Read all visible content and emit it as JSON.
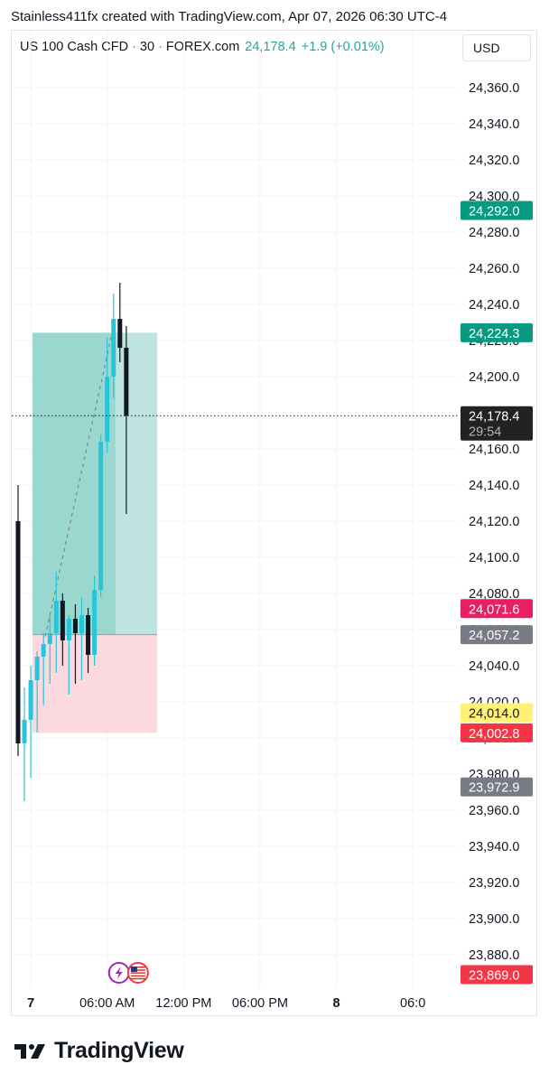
{
  "header": {
    "text": "Stainless411fx created with TradingView.com, Apr 07, 2026 06:30 UTC-4"
  },
  "legend": {
    "symbol": "US 100 Cash CFD",
    "interval": "30",
    "source": "FOREX.com",
    "price": "24,178.4",
    "change": "+1.9 (+0.01%)"
  },
  "currency_button": {
    "label": "USD"
  },
  "footer": {
    "brand": "TradingView"
  },
  "colors": {
    "up": "#26c6da",
    "down": "#131722",
    "target_zone": "#b2dfdb",
    "stop_zone": "#fbd5da",
    "profit_tag": "#089981",
    "loss_tag": "#f23645",
    "pink_tag": "#e91e63",
    "grey_tag": "#787b86",
    "yellow_tag": "#fff176",
    "current_tag": "#222222"
  },
  "chart_data": {
    "type": "candlestick",
    "y_range": [
      23860,
      24375
    ],
    "y_ticks": [
      "24,360.0",
      "24,340.0",
      "24,320.0",
      "24,300.0",
      "24,280.0",
      "24,260.0",
      "24,240.0",
      "24,220.0",
      "24,200.0",
      "24,180.0",
      "24,160.0",
      "24,140.0",
      "24,120.0",
      "24,100.0",
      "24,080.0",
      "24,060.0",
      "24,040.0",
      "24,020.0",
      "24,000.0",
      "23,980.0",
      "23,960.0",
      "23,940.0",
      "23,920.0",
      "23,900.0",
      "23,880.0"
    ],
    "x_ticks": [
      {
        "label": "7",
        "bold": true,
        "slot": 3
      },
      {
        "label": "06:00 AM",
        "bold": false,
        "slot": 15
      },
      {
        "label": "12:00 PM",
        "bold": false,
        "slot": 27
      },
      {
        "label": "06:00 PM",
        "bold": false,
        "slot": 39
      },
      {
        "label": "8",
        "bold": true,
        "slot": 51
      },
      {
        "label": "06:0",
        "bold": false,
        "slot": 63
      }
    ],
    "candles": [
      {
        "open": 24120,
        "high": 24140,
        "low": 23990,
        "close": 23997
      },
      {
        "open": 23997,
        "high": 24028,
        "low": 23965,
        "close": 24010
      },
      {
        "open": 24010,
        "high": 24040,
        "low": 23978,
        "close": 24032
      },
      {
        "open": 24032,
        "high": 24048,
        "low": 24003,
        "close": 24045
      },
      {
        "open": 24045,
        "high": 24058,
        "low": 24018,
        "close": 24052
      },
      {
        "open": 24052,
        "high": 24068,
        "low": 24030,
        "close": 24058
      },
      {
        "open": 24058,
        "high": 24092,
        "low": 24036,
        "close": 24076
      },
      {
        "open": 24076,
        "high": 24080,
        "low": 24040,
        "close": 24054
      },
      {
        "open": 24054,
        "high": 24068,
        "low": 24024,
        "close": 24066
      },
      {
        "open": 24066,
        "high": 24074,
        "low": 24030,
        "close": 24058
      },
      {
        "open": 24058,
        "high": 24078,
        "low": 24032,
        "close": 24068
      },
      {
        "open": 24068,
        "high": 24072,
        "low": 24036,
        "close": 24046
      },
      {
        "open": 24046,
        "high": 24090,
        "low": 24040,
        "close": 24082
      },
      {
        "open": 24082,
        "high": 24168,
        "low": 24078,
        "close": 24164
      },
      {
        "open": 24164,
        "high": 24222,
        "low": 24158,
        "close": 24200
      },
      {
        "open": 24200,
        "high": 24246,
        "low": 24188,
        "close": 24232
      },
      {
        "open": 24232,
        "high": 24252,
        "low": 24208,
        "close": 24216
      },
      {
        "open": 24216,
        "high": 24228,
        "low": 24124,
        "close": 24178.4
      }
    ],
    "position": {
      "entry": 24057.2,
      "target": 24224.3,
      "stop": 24002.8,
      "start_slot": 1,
      "end_slot": 18,
      "fill_slot": 16
    },
    "current_price": 24178.4,
    "price_tags": [
      {
        "label": "24,292.0",
        "sub": "",
        "price": 24292.0,
        "color": "#089981",
        "text": "#ffffff"
      },
      {
        "label": "24,224.3",
        "sub": "",
        "price": 24224.3,
        "color": "#089981",
        "text": "#ffffff"
      },
      {
        "label": "24,178.4",
        "sub": "29:54",
        "price": 24178.4,
        "color": "#222222",
        "text": "#ffffff"
      },
      {
        "label": "24,071.6",
        "sub": "",
        "price": 24071.6,
        "color": "#e91e63",
        "text": "#ffffff"
      },
      {
        "label": "24,057.2",
        "sub": "",
        "price": 24057.2,
        "color": "#787b86",
        "text": "#ffffff"
      },
      {
        "label": "24,014.0",
        "sub": "",
        "price": 24014.0,
        "color": "#fff176",
        "text": "#131722"
      },
      {
        "label": "24,002.8",
        "sub": "",
        "price": 24002.8,
        "color": "#f23645",
        "text": "#ffffff"
      },
      {
        "label": "23,972.9",
        "sub": "",
        "price": 23972.9,
        "color": "#787b86",
        "text": "#ffffff"
      },
      {
        "label": "23,869.0",
        "sub": "",
        "price": 23869.0,
        "color": "#f23645",
        "text": "#ffffff"
      }
    ],
    "event_icons": [
      {
        "icon": "lightning-icon",
        "slot": 15
      },
      {
        "icon": "us-flag-icon",
        "slot": 18
      }
    ]
  }
}
